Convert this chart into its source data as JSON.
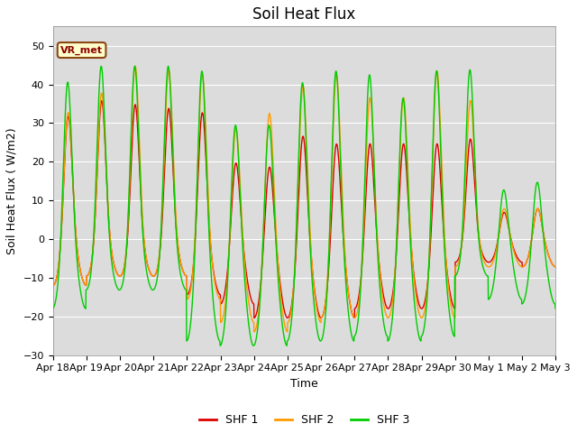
{
  "title": "Soil Heat Flux",
  "xlabel": "Time",
  "ylabel": "Soil Heat Flux ( W/m2)",
  "ylim": [
    -30,
    55
  ],
  "yticks": [
    -30,
    -20,
    -10,
    0,
    10,
    20,
    30,
    40,
    50
  ],
  "background_color": "#dcdcdc",
  "line_colors": {
    "SHF 1": "#dd0000",
    "SHF 2": "#ff9900",
    "SHF 3": "#00cc00"
  },
  "line_widths": {
    "SHF 1": 1.0,
    "SHF 2": 1.0,
    "SHF 3": 1.0
  },
  "legend_label": "VR_met",
  "date_labels": [
    "Apr 18",
    "Apr 19",
    "Apr 20",
    "Apr 21",
    "Apr 22",
    "Apr 23",
    "Apr 24",
    "Apr 25",
    "Apr 26",
    "Apr 27",
    "Apr 28",
    "Apr 29",
    "Apr 30",
    "May 1",
    "May 2",
    "May 3"
  ],
  "num_days": 15,
  "samples_per_day": 144,
  "title_fontsize": 12,
  "axis_fontsize": 9,
  "tick_fontsize": 8,
  "peaks1": [
    32,
    36,
    35,
    34,
    33,
    20,
    19,
    27,
    25,
    25,
    25,
    25,
    26,
    7,
    8
  ],
  "peaks2": [
    33,
    38,
    45,
    44,
    43,
    29,
    33,
    40,
    43,
    37,
    37,
    44,
    36,
    8,
    8
  ],
  "peaks3": [
    41,
    45,
    45,
    45,
    44,
    30,
    30,
    41,
    44,
    43,
    37,
    44,
    44,
    13,
    15
  ],
  "mins1": [
    -10,
    -8,
    -8,
    -8,
    -12,
    -14,
    -17,
    -17,
    -17,
    -15,
    -15,
    -15,
    -5,
    -5,
    -6
  ],
  "mins2": [
    -10,
    -8,
    -8,
    -8,
    -13,
    -18,
    -20,
    -18,
    -17,
    -17,
    -17,
    -17,
    -6,
    -6,
    -6
  ],
  "mins3": [
    -15,
    -11,
    -11,
    -11,
    -22,
    -23,
    -23,
    -22,
    -22,
    -21,
    -22,
    -21,
    -8,
    -13,
    -14
  ]
}
